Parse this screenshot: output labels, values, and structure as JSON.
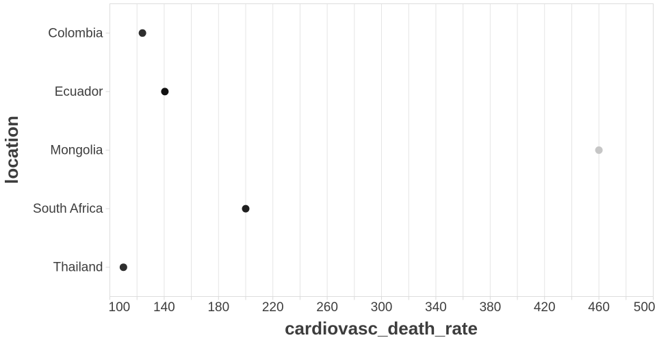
{
  "chart_data": {
    "type": "scatter",
    "subtype": "dot-plot-horizontal",
    "title": "",
    "xlabel": "cardiovasc_death_rate",
    "ylabel": "location",
    "categories": [
      "Colombia",
      "Ecuador",
      "Mongolia",
      "South Africa",
      "Thailand"
    ],
    "values": [
      124,
      140.5,
      460,
      200,
      110
    ],
    "points": [
      {
        "label": "Colombia",
        "value": 124,
        "color": "#2e2e2e"
      },
      {
        "label": "Ecuador",
        "value": 140.5,
        "color": "#111111"
      },
      {
        "label": "Mongolia",
        "value": 460,
        "color": "#c6c6c6"
      },
      {
        "label": "South Africa",
        "value": 200,
        "color": "#1f1f1f"
      },
      {
        "label": "Thailand",
        "value": 110,
        "color": "#2e2e2e"
      }
    ],
    "xlim": [
      100,
      500
    ],
    "x_major_ticks": [
      100,
      140,
      180,
      220,
      260,
      300,
      340,
      380,
      420,
      460,
      500
    ],
    "x_grid_step": 20,
    "grid": "vertical-only",
    "legend": "none",
    "marker": {
      "shape": "circle",
      "radius": 5.5
    }
  },
  "theme": {
    "background_color": "#ffffff",
    "grid_color": "#e4e4e4",
    "border_color": "#dddddd",
    "tick_color": "#d9d9d9",
    "text_color": "#3d3d3d"
  }
}
